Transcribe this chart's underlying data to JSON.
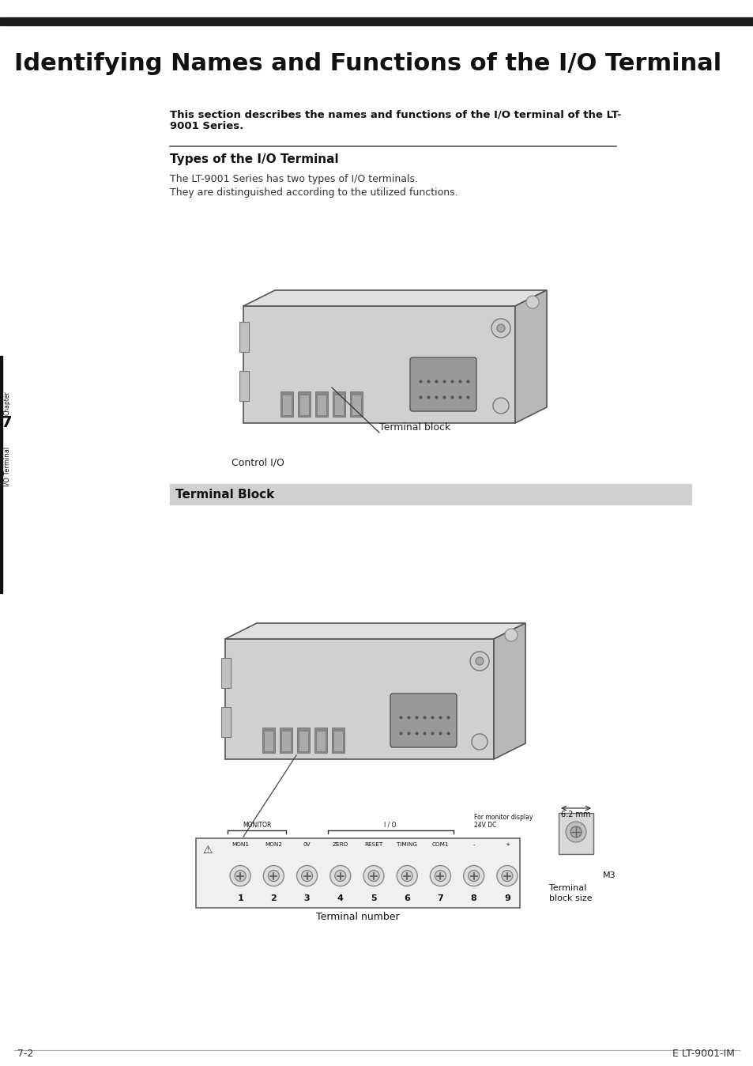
{
  "title": "Identifying Names and Functions of the I/O Terminal",
  "page_bg": "#ffffff",
  "header_bar_color": "#1a1a1a",
  "section_title_1": "Types of the I/O Terminal",
  "intro_bold": "This section describes the names and functions of the I/O terminal of the LT-\n9001 Series.",
  "body_text_1": "The LT-9001 Series has two types of I/O terminals.",
  "body_text_2": "They are distinguished according to the utilized functions.",
  "section_title_2": "Terminal Block",
  "section2_bg": "#d0d0d0",
  "label_terminal_block": "Terminal block",
  "label_control_io": "Control I/O",
  "label_terminal_number": "Terminal number",
  "label_terminal_block_size": "Terminal\nblock size",
  "label_m3": "M3",
  "label_6mm": "6.2 mm",
  "chapter_label": "Chapter",
  "chapter_num": "7",
  "chapter_side": "I/O Terminal",
  "footer_left": "7-2",
  "footer_right": "E LT-9001-IM",
  "terminal_labels": [
    "MON1",
    "MON2",
    "0V",
    "ZERO",
    "RESET",
    "TIMING",
    "COM1",
    "-",
    "+"
  ],
  "terminal_numbers": [
    "1",
    "2",
    "3",
    "4",
    "5",
    "6",
    "7",
    "8",
    "9"
  ],
  "monitor_label": "MONITOR",
  "io_label": "I / O",
  "for_monitor_label": "For monitor display",
  "vdc_label": "24V DC"
}
